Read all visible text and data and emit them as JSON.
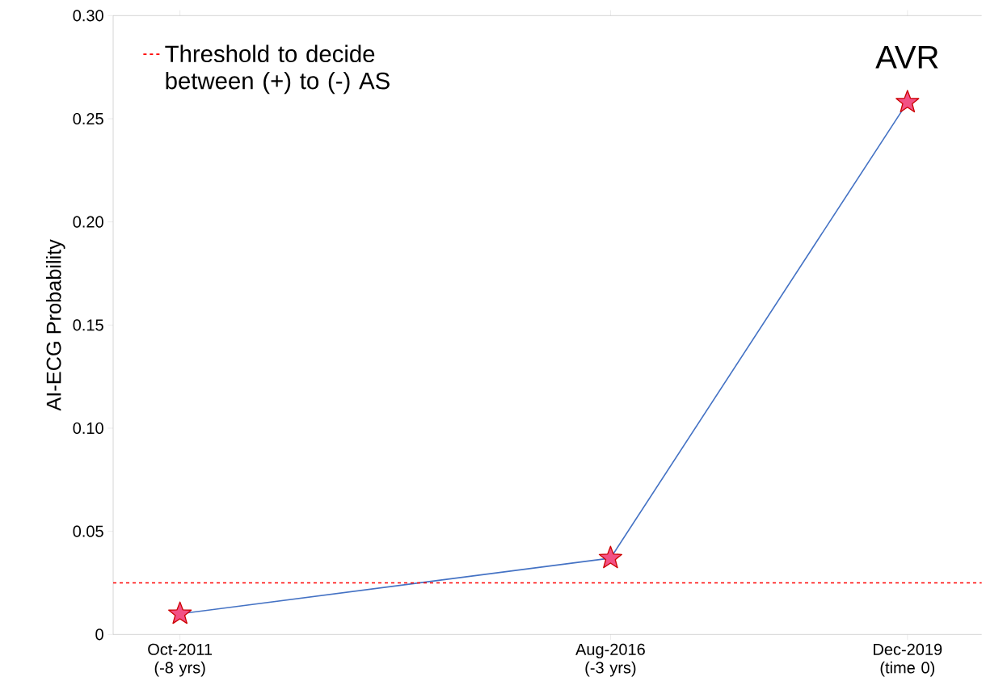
{
  "chart_data": {
    "type": "line",
    "ylabel": "AI-ECG Probability",
    "x": [
      "2011-10",
      "2016-08",
      "2019-12"
    ],
    "series": [
      {
        "color": "#4472c4",
        "values": [
          0.01,
          0.037,
          0.258
        ]
      }
    ],
    "marker": "star",
    "line_style": "solid",
    "xlim": [
      "2011-01",
      "2020-10"
    ],
    "xticks": [
      {
        "value": "2011-10",
        "label": "Oct-2011 (-8 yrs)"
      },
      {
        "value": "2016-08",
        "label": "Aug-2016 (-3 yrs)"
      },
      {
        "value": "2019-12",
        "label": "Dec-2019 (time 0)"
      }
    ],
    "ylim": [
      0,
      0.3
    ],
    "yticks": [
      {
        "value": 0,
        "label": "0"
      },
      {
        "value": 0.05,
        "label": "0.05"
      },
      {
        "value": 0.1,
        "label": "0.10"
      },
      {
        "value": 0.15,
        "label": "0.15"
      },
      {
        "value": 0.2,
        "label": "0.20"
      },
      {
        "value": 0.25,
        "label": "0.25"
      },
      {
        "value": 0.3,
        "label": "0.30"
      }
    ],
    "ref_lines": [
      {
        "axis": "y",
        "value": 0.025,
        "label": "Threshold to decide between (+) to (-) AS",
        "color": "#ff0000",
        "line_style": "dashed"
      }
    ],
    "annotations": [
      {
        "text": "AVR",
        "x": "2019-12",
        "y": 0.258
      }
    ],
    "legend": "top left",
    "grid": false
  }
}
